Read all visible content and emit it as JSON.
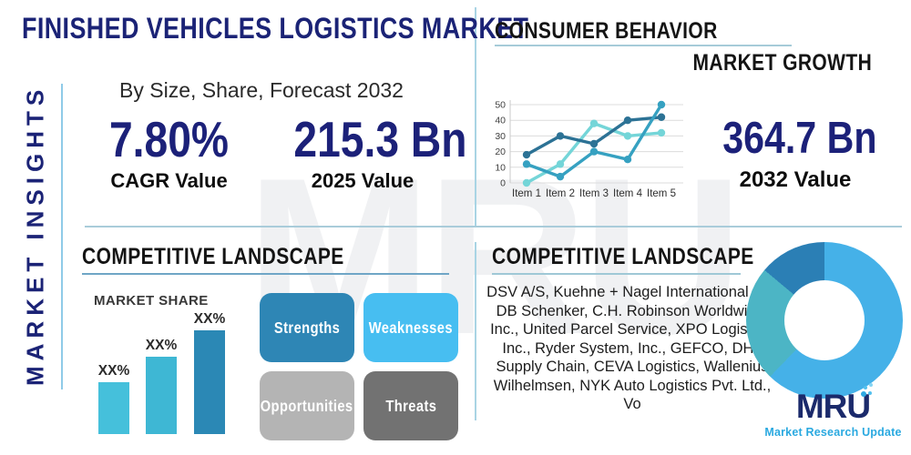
{
  "brand": {
    "logo_text": "MRU",
    "tagline": "Market Research Update"
  },
  "left_rail": {
    "vertical_label": "MARKET INSIGHTS"
  },
  "header": {
    "title": "FINISHED VEHICLES LOGISTICS MARKET",
    "subtitle": "By Size, Share, Forecast 2032"
  },
  "stats": {
    "cagr": {
      "value": "7.80%",
      "label": "CAGR Value"
    },
    "base_year": {
      "value": "215.3 Bn",
      "label": "2025 Value"
    },
    "forecast_year": {
      "value": "364.7 Bn",
      "label": "2032 Value"
    }
  },
  "consumer_behavior": {
    "title": "CONSUMER BEHAVIOR",
    "subtitle": "MARKET GROWTH"
  },
  "competitive_left": {
    "title": "COMPETITIVE LANDSCAPE",
    "market_share_label": "MARKET SHARE"
  },
  "swot": {
    "items": [
      {
        "label": "Strengths",
        "color": "#2e86b5"
      },
      {
        "label": "Weaknesses",
        "color": "#47bef1"
      },
      {
        "label": "Opportunities",
        "color": "#b4b4b4"
      },
      {
        "label": "Threats",
        "color": "#727272"
      }
    ]
  },
  "competitive_right": {
    "title": "COMPETITIVE LANDSCAPE",
    "companies": "DSV A/S, Kuehne + Nagel International AG, DB Schenker, C.H. Robinson Worldwide, Inc., United Parcel Service, XPO Logistics, Inc., Ryder System, Inc., GEFCO, DHL Supply Chain, CEVA Logistics, Wallenius Wilhelmsen, NYK Auto Logistics Pvt. Ltd., Vo"
  },
  "chart_data": [
    {
      "type": "line",
      "name": "consumer-behavior-trend",
      "categories": [
        "Item 1",
        "Item 2",
        "Item 3",
        "Item 4",
        "Item 5"
      ],
      "series": [
        {
          "name": "series-1-dark-blue",
          "color": "#2c7295",
          "values": [
            18,
            30,
            25,
            40,
            42
          ]
        },
        {
          "name": "series-2-teal",
          "color": "#36a1c1",
          "values": [
            12,
            4,
            20,
            15,
            50
          ]
        },
        {
          "name": "series-3-light-cyan",
          "color": "#74d5d8",
          "values": [
            0,
            12,
            38,
            30,
            32
          ]
        }
      ],
      "ylim": [
        0,
        50
      ],
      "yticks": [
        0,
        10,
        20,
        30,
        40,
        50
      ],
      "grid": true,
      "legend": "none"
    },
    {
      "type": "bar",
      "name": "market-share",
      "title": "MARKET SHARE",
      "categories": [
        "",
        "",
        ""
      ],
      "values": [
        57,
        85,
        114
      ],
      "value_labels": [
        "XX%",
        "XX%",
        "XX%"
      ],
      "colors": [
        "#45c0db",
        "#3eb7d4",
        "#2b88b5"
      ],
      "ylabel": "",
      "xlabel": ""
    },
    {
      "type": "pie",
      "subtype": "donut",
      "name": "market-share-donut",
      "segments": [
        {
          "name": "segment-1",
          "color": "#45b1e8",
          "angle_deg": 224
        },
        {
          "name": "segment-2",
          "color": "#4cb5c5",
          "angle_deg": 86
        },
        {
          "name": "segment-3",
          "color": "#2b7fb5",
          "angle_deg": 50
        }
      ],
      "legend": "none"
    }
  ]
}
